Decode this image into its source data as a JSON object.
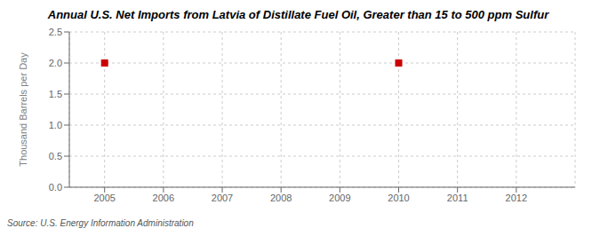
{
  "chart_data": {
    "type": "scatter",
    "title": "Annual U.S. Net Imports from Latvia of Distillate Fuel Oil, Greater than 15 to 500 ppm Sulfur",
    "ylabel": "Thousand Barrels per Day",
    "source": "Source: U.S. Energy Information Administration",
    "x": [
      2005,
      2010
    ],
    "values": [
      2.0,
      2.0
    ],
    "color": "#cc0000",
    "marker": "square",
    "xlim": [
      2004.4,
      2013.0
    ],
    "xticks": [
      2005,
      2006,
      2007,
      2008,
      2009,
      2010,
      2011,
      2012
    ],
    "ylim": [
      0.0,
      2.5
    ],
    "yticks": [
      {
        "value": 0.0,
        "label": "0.0"
      },
      0.5,
      {
        "value": 1.0,
        "label": "1.0"
      },
      1.5,
      {
        "value": 2.0,
        "label": "2.0"
      },
      2.5
    ],
    "grid": true
  }
}
